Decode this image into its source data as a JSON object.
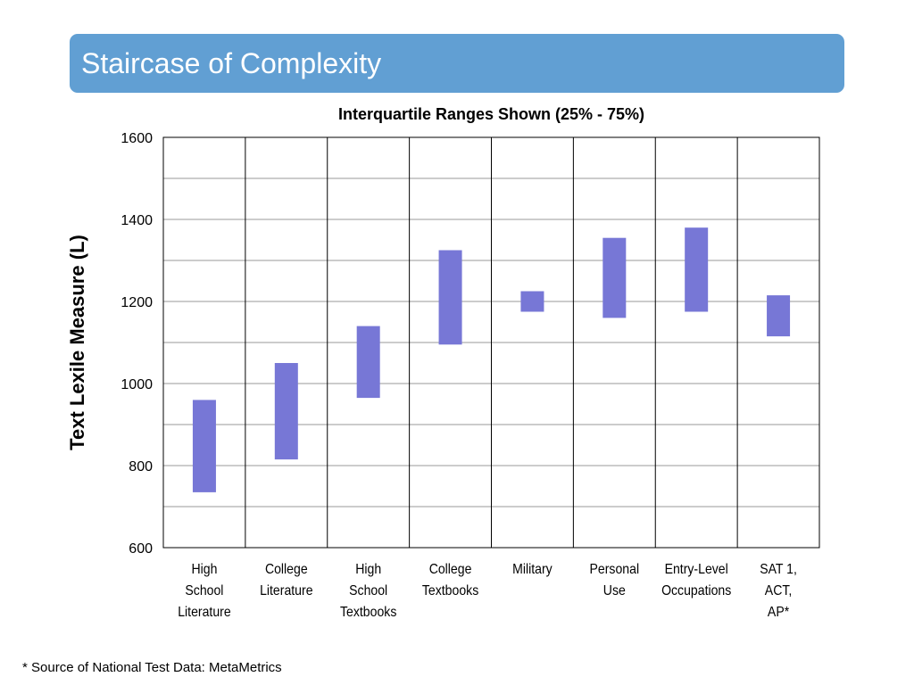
{
  "slide": {
    "title": "Staircase of Complexity",
    "footnote": "* Source of National Test Data: MetaMetrics"
  },
  "colors": {
    "title_bar": "#619fd3",
    "bar": "#7777d6",
    "grid": "#999999"
  },
  "chart_data": {
    "type": "bar",
    "subtype": "floating-range",
    "title": "Interquartile Ranges Shown (25% - 75%)",
    "ylabel": "Text Lexile Measure (L)",
    "xlabel": "",
    "ylim": [
      600,
      1600
    ],
    "yticks": [
      600,
      800,
      1000,
      1200,
      1400,
      1600
    ],
    "minor_gridlines": [
      700,
      900,
      1100,
      1300,
      1500
    ],
    "categories": [
      [
        "High",
        "School",
        "Literature"
      ],
      [
        "College",
        "Literature"
      ],
      [
        "High",
        "School",
        "Textbooks"
      ],
      [
        "College",
        "Textbooks"
      ],
      [
        "Military"
      ],
      [
        "Personal",
        "Use"
      ],
      [
        "Entry-Level",
        "Occupations"
      ],
      [
        "SAT 1,",
        "ACT,",
        "AP*"
      ]
    ],
    "series": [
      {
        "name": "Interquartile range",
        "low": [
          735,
          815,
          965,
          1095,
          1175,
          1160,
          1175,
          1115
        ],
        "high": [
          960,
          1050,
          1140,
          1325,
          1225,
          1355,
          1380,
          1215
        ]
      }
    ]
  }
}
